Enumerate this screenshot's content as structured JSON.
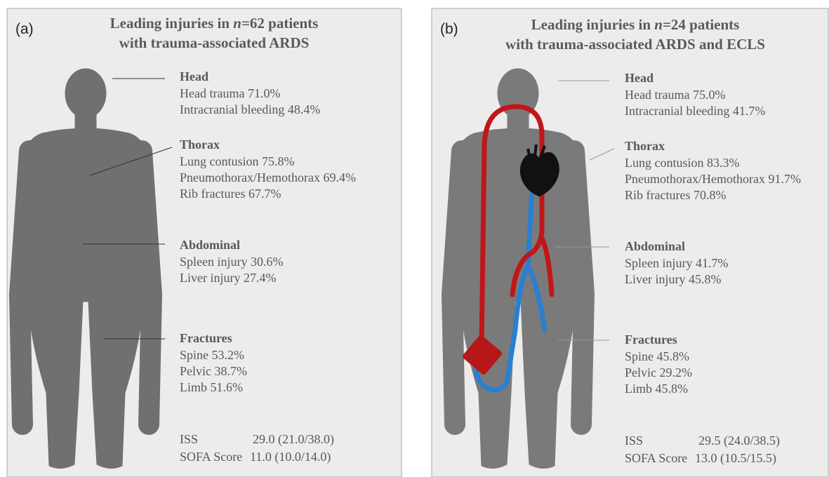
{
  "panels": [
    {
      "label": "(a)",
      "title_line1": {
        "before": "Leading injuries in ",
        "italic": "n",
        "after": "=62 patients"
      },
      "title_line2": "with trauma-associated ARDS",
      "sections": [
        {
          "heading": "Head",
          "items": [
            "Head trauma 71.0%",
            "Intracranial bleeding 48.4%"
          ]
        },
        {
          "heading": "Thorax",
          "items": [
            "Lung contusion 75.8%",
            "Pneumothorax/Hemothorax 69.4%",
            "Rib fractures 67.7%"
          ]
        },
        {
          "heading": "Abdominal",
          "items": [
            "Spleen injury 30.6%",
            "Liver injury 27.4%"
          ]
        },
        {
          "heading": "Fractures",
          "items": [
            "Spine 53.2%",
            "Pelvic 38.7%",
            "Limb 51.6%"
          ]
        }
      ],
      "stats": [
        {
          "label": "ISS",
          "value": "29.0 (21.0/38.0)"
        },
        {
          "label": "SOFA Score",
          "value": "11.0 (10.0/14.0)"
        }
      ]
    },
    {
      "label": "(b)",
      "title_line1": {
        "before": "Leading injuries in ",
        "italic": "n",
        "after": "=24 patients"
      },
      "title_line2": "with trauma-associated ARDS and ECLS",
      "sections": [
        {
          "heading": "Head",
          "items": [
            "Head trauma 75.0%",
            "Intracranial bleeding 41.7%"
          ]
        },
        {
          "heading": "Thorax",
          "items": [
            "Lung contusion 83.3%",
            "Pneumothorax/Hemothorax 91.7%",
            "Rib fractures 70.8%"
          ]
        },
        {
          "heading": "Abdominal",
          "items": [
            "Spleen injury 41.7%",
            "Liver injury 45.8%"
          ]
        },
        {
          "heading": "Fractures",
          "items": [
            "Spine 45.8%",
            "Pelvic 29.2%",
            "Limb 45.8%"
          ]
        }
      ],
      "stats": [
        {
          "label": "ISS",
          "value": "29.5 (24.0/38.5)"
        },
        {
          "label": "SOFA Score",
          "value": "13.0 (10.5/15.5)"
        }
      ]
    }
  ]
}
